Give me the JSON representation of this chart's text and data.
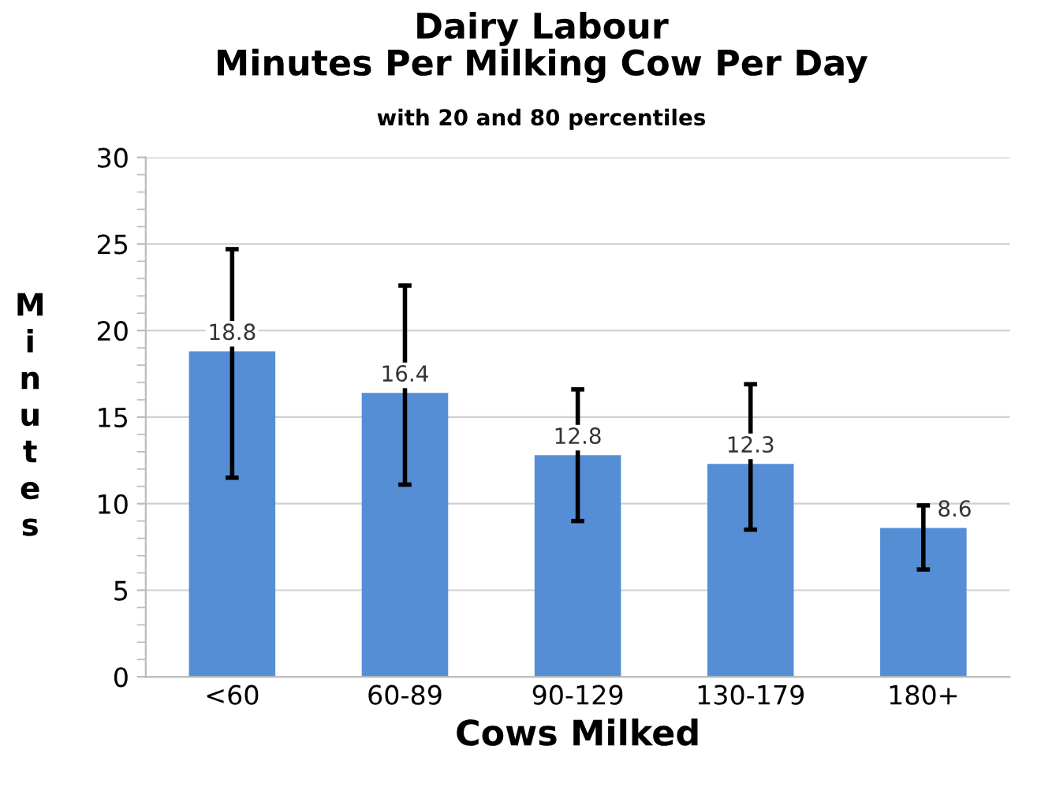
{
  "chart_data": {
    "type": "bar",
    "title": "Dairy Labour\nMinutes Per Milking Cow Per Day",
    "subtitle": "with 20 and 80 percentiles",
    "xlabel": "Cows Milked",
    "ylabel": "Minutes",
    "categories": [
      "<60",
      "60-89",
      "90-129",
      "130-179",
      "180+"
    ],
    "values": [
      18.8,
      16.4,
      12.8,
      12.3,
      8.6
    ],
    "color": "#558ed5",
    "errors": [
      [
        11.5,
        24.7
      ],
      [
        11.1,
        22.6
      ],
      [
        9.0,
        16.6
      ],
      [
        8.5,
        16.9
      ],
      [
        6.2,
        9.9
      ]
    ],
    "ylim": [
      0,
      30
    ],
    "yticks": [
      0,
      5,
      10,
      15,
      20,
      25,
      30
    ],
    "grid": "y",
    "data_labels": true
  }
}
